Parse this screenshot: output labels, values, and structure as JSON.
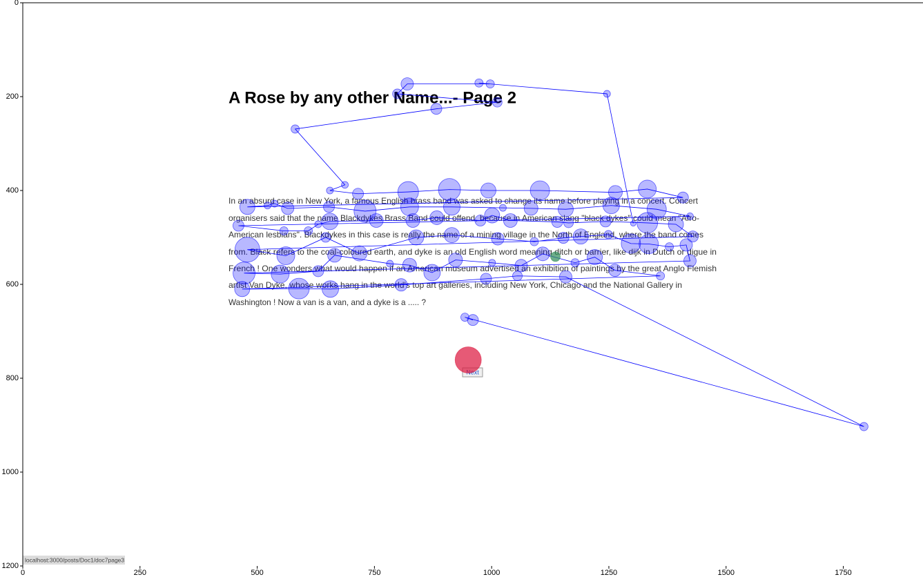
{
  "page": {
    "title": "A Rose by any other Name...- Page 2",
    "paragraph_lines": [
      "In an absurd case in New York, a famous English brass band was asked to change its name before playing in a concert. Concert",
      "organisers said that the name Blackdykes Brass Band could offend, because in American slang \"black dykes\" could mean \"Afro-",
      "American lesbians\". Blackdykes in this case is really the name of a mining village in the North of England, where the band comes",
      "from. Black refers to the coal-coloured earth, and dyke is an old English word meaning ditch or barrier, like dijk in Dutch or digue in",
      "French ! One wonders what would happen if an American museum advertised an exhibition of paintings by the great Anglo Flemish",
      "artist Van Dyke, whose works hang in the world's top art galleries, including New York, Chicago and the National Gallery in",
      "Washington ! Now a van is a van, and a dyke is a ..... ?"
    ],
    "button": "Next",
    "status_url": "localhost:3000/posts/Doc1/doc7page3"
  },
  "chart_data": {
    "type": "scatter",
    "xlim": [
      0,
      1920
    ],
    "ylim": [
      1200,
      0
    ],
    "xticks": [
      0,
      250,
      500,
      750,
      1000,
      1250,
      1500,
      1750
    ],
    "yticks": [
      0,
      200,
      400,
      600,
      800,
      1000,
      1200
    ],
    "line_color": "#0000ff",
    "series": [
      {
        "color": "#0000ff",
        "x": [
          1302,
          1246,
          973,
          997,
          820,
          799,
          1012,
          882,
          581,
          687,
          655,
          715,
          822,
          910,
          993,
          1103,
          1264,
          1332,
          1408,
          479,
          522,
          537,
          565,
          653,
          730,
          825,
          915,
          1024,
          1084,
          1158,
          1255,
          1352,
          1423,
          460,
          557,
          609,
          630,
          655,
          754,
          832,
          883,
          976,
          1001,
          1040,
          1140,
          1164,
          1243,
          1332,
          1393,
          1429,
          479,
          561,
          646,
          718,
          839,
          915,
          1013,
          1091,
          1153,
          1190,
          1249,
          1297,
          1335,
          1379,
          1415,
          1423,
          472,
          549,
          630,
          665,
          783,
          825,
          873,
          923,
          1001,
          1063,
          1109,
          1178,
          1220,
          1263,
          1360,
          468,
          589,
          656,
          807,
          988,
          1055,
          1158,
          1794,
          943,
          960
        ],
        "values": [
          470,
          194,
          171,
          173,
          173,
          194,
          212,
          226,
          269,
          388,
          400,
          407,
          403,
          398,
          400,
          400,
          404,
          397,
          415,
          435,
          432,
          428,
          438,
          435,
          444,
          435,
          435,
          437,
          438,
          440,
          432,
          440,
          455,
          475,
          486,
          486,
          472,
          466,
          464,
          464,
          458,
          464,
          453,
          464,
          467,
          469,
          466,
          469,
          472,
          498,
          526,
          539,
          500,
          534,
          500,
          495,
          503,
          509,
          501,
          498,
          494,
          513,
          514,
          520,
          516,
          550,
          576,
          578,
          572,
          538,
          556,
          559,
          575,
          548,
          554,
          560,
          535,
          554,
          542,
          570,
          582,
          610,
          609,
          610,
          601,
          588,
          582,
          584,
          903,
          670,
          676
        ],
        "sizes": [
          4,
          5,
          6,
          6,
          9,
          7,
          7,
          8,
          6,
          5,
          5,
          8,
          15,
          16,
          11,
          14,
          10,
          13,
          8,
          11,
          5,
          5,
          9,
          8,
          16,
          13,
          12,
          5,
          10,
          11,
          12,
          14,
          5,
          8,
          6,
          6,
          5,
          12,
          10,
          10,
          10,
          8,
          11,
          10,
          8,
          7,
          8,
          15,
          11,
          8,
          18,
          13,
          7,
          11,
          11,
          11,
          9,
          6,
          8,
          11,
          6,
          14,
          14,
          6,
          9,
          9,
          16,
          13,
          8,
          10,
          5,
          10,
          12,
          10,
          5,
          9,
          10,
          6,
          11,
          9,
          6,
          11,
          15,
          12,
          9,
          8,
          7,
          9,
          6,
          6,
          8
        ]
      },
      {
        "color": "#2e8b57",
        "x": [
          1136
        ],
        "values": [
          541
        ],
        "sizes": [
          7
        ]
      },
      {
        "color": "#dc143c",
        "x": [
          950
        ],
        "values": [
          761
        ],
        "sizes": [
          19
        ]
      }
    ]
  }
}
